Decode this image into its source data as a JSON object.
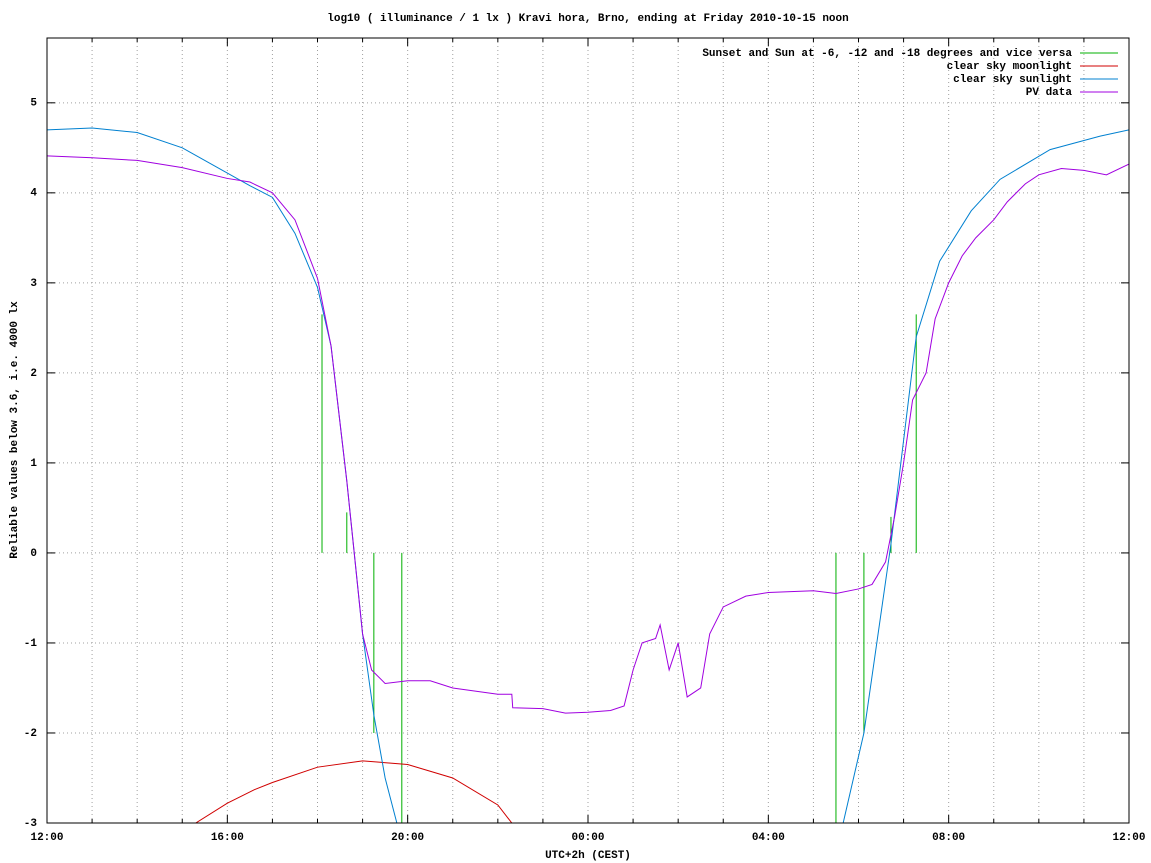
{
  "chart_data": {
    "type": "line",
    "title": "log10 ( illuminance / 1 lx ) Kravi hora, Brno, ending at Friday 2010-10-15 noon",
    "xlabel": "UTC+2h (CEST)",
    "ylabel": "Reliable values below 3.6, i.e. 4000 lx",
    "xlim": [
      0,
      24
    ],
    "ylim": [
      -3,
      5.72
    ],
    "xticks": [
      {
        "value": 0,
        "label": "12:00"
      },
      {
        "value": 4,
        "label": "16:00"
      },
      {
        "value": 8,
        "label": "20:00"
      },
      {
        "value": 12,
        "label": "00:00"
      },
      {
        "value": 16,
        "label": "04:00"
      },
      {
        "value": 20,
        "label": "08:00"
      },
      {
        "value": 24,
        "label": "12:00"
      }
    ],
    "xminorticks": [
      1,
      2,
      3,
      5,
      6,
      7,
      9,
      10,
      11,
      13,
      14,
      15,
      17,
      18,
      19,
      21,
      22,
      23
    ],
    "yticks": [
      -3,
      -2,
      -1,
      0,
      1,
      2,
      3,
      4,
      5
    ],
    "grid": true,
    "legend": "top-right",
    "series": [
      {
        "name": "Sunset and Sun at -6, -12 and -18 degrees and vice versa",
        "color": "#00b000",
        "x": [
          6.1,
          6.1,
          null,
          6.65,
          6.65,
          null,
          7.25,
          7.25,
          null,
          7.87,
          7.87,
          null,
          17.5,
          17.5,
          null,
          18.12,
          18.12,
          null,
          18.72,
          18.72,
          null,
          19.28,
          19.28
        ],
        "values": [
          0,
          2.65,
          null,
          0,
          0.45,
          null,
          0,
          -2.0,
          null,
          0,
          -3,
          null,
          0,
          -3,
          null,
          0,
          -2.0,
          null,
          0,
          0.4,
          null,
          0,
          2.65
        ]
      },
      {
        "name": "clear sky moonlight",
        "color": "#d00000",
        "x": [
          3.3,
          4,
          4.6,
          5,
          6,
          7,
          8,
          9,
          10,
          10.31
        ],
        "values": [
          -3,
          -2.78,
          -2.63,
          -2.55,
          -2.38,
          -2.31,
          -2.35,
          -2.5,
          -2.8,
          -3
        ]
      },
      {
        "name": "clear sky sunlight",
        "color": "#0080d0",
        "x": [
          0,
          1,
          2,
          3,
          4,
          4.5,
          5,
          5.5,
          6,
          6.3,
          6.65,
          7,
          7.25,
          7.5,
          7.76,
          null,
          17.66,
          18.12,
          18.72,
          19.28,
          19.8,
          20.5,
          21.14,
          22.25,
          23.36,
          24
        ],
        "values": [
          4.7,
          4.72,
          4.67,
          4.5,
          4.22,
          4.08,
          3.95,
          3.55,
          2.95,
          2.3,
          0.8,
          -0.9,
          -1.8,
          -2.5,
          -3,
          null,
          -3,
          -2.0,
          0.1,
          2.4,
          3.24,
          3.8,
          4.15,
          4.48,
          4.63,
          4.7
        ]
      },
      {
        "name": "PV data",
        "color": "#a000e0",
        "x": [
          0,
          1,
          2,
          3,
          4,
          4.5,
          5,
          5.5,
          6,
          6.3,
          6.65,
          7,
          7.2,
          7.5,
          8,
          8.5,
          9,
          10,
          10.31,
          10.33,
          11,
          11.5,
          12,
          12.5,
          12.8,
          13,
          13.2,
          13.5,
          13.6,
          13.8,
          14,
          14.2,
          14.5,
          14.7,
          15,
          15.5,
          16,
          17,
          17.5,
          18,
          18.3,
          18.6,
          18.8,
          19,
          19.2,
          19.5,
          19.7,
          20,
          20.3,
          20.6,
          21,
          21.3,
          21.7,
          22,
          22.5,
          23,
          23.5,
          24
        ],
        "values": [
          4.41,
          4.39,
          4.36,
          4.28,
          4.16,
          4.12,
          4.0,
          3.7,
          3.05,
          2.3,
          0.8,
          -0.9,
          -1.3,
          -1.45,
          -1.42,
          -1.42,
          -1.5,
          -1.57,
          -1.57,
          -1.72,
          -1.73,
          -1.78,
          -1.77,
          -1.75,
          -1.7,
          -1.3,
          -1.0,
          -0.95,
          -0.8,
          -1.3,
          -1.0,
          -1.6,
          -1.5,
          -0.9,
          -0.6,
          -0.48,
          -0.44,
          -0.42,
          -0.45,
          -0.4,
          -0.35,
          -0.1,
          0.4,
          1.0,
          1.7,
          2.0,
          2.6,
          3.0,
          3.3,
          3.5,
          3.7,
          3.9,
          4.1,
          4.2,
          4.27,
          4.25,
          4.2,
          4.32
        ]
      }
    ]
  }
}
